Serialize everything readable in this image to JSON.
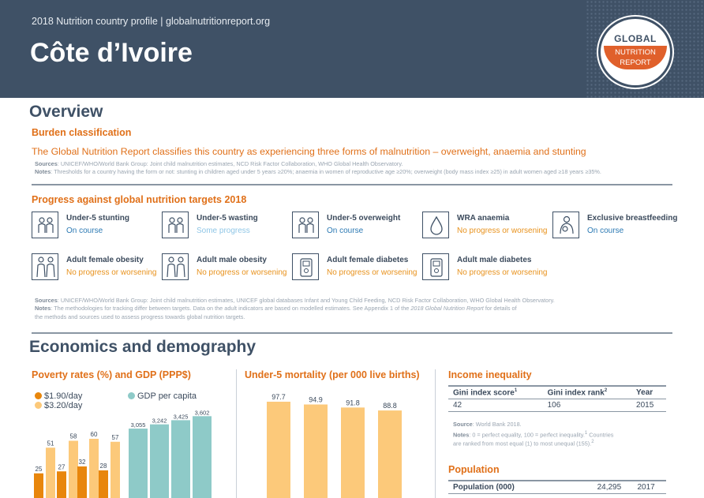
{
  "header": {
    "topline": "2018 Nutrition country profile  |  globalnutritionreport.org",
    "country": "Côte d’Ivoire",
    "logo_top": "GLOBAL",
    "logo_mid": "NUTRITION",
    "logo_bottom": "REPORT"
  },
  "colors": {
    "header_bg": "#3f5166",
    "accent_orange": "#e07019",
    "on_course": "#2b79b3",
    "some_progress": "#8fc6e6",
    "no_progress": "#e8921d",
    "poverty_190": "#e8860c",
    "poverty_320": "#fcc97a",
    "gdp": "#8ecac8"
  },
  "overview": {
    "title": "Overview",
    "burden_title": "Burden classification",
    "burden_text": "The Global Nutrition Report classifies this country as experiencing three forms of malnutrition – overweight, anaemia and stunting",
    "sources_label": "Sources",
    "sources_text": ": UNICEF/WHO/World Bank Group: Joint child malnutrition estimates, NCD Risk Factor Collaboration, WHO Global Health Observatory.",
    "notes_label": "Notes",
    "notes_text": ": Thresholds for a country having the form or not: stunting in children aged under 5 years ≥20%; anaemia in women of reproductive age ≥20%; overweight (body mass index ≥25) in adult women aged ≥18 years ≥35%."
  },
  "progress": {
    "title": "Progress against global nutrition targets 2018",
    "targets": [
      {
        "name": "Under-5 stunting",
        "status": "On course",
        "cls": "st-on",
        "icon": "children-icon"
      },
      {
        "name": "Under-5 wasting",
        "status": "Some progress",
        "cls": "st-some",
        "icon": "children-icon"
      },
      {
        "name": "Under-5 overweight",
        "status": "On course",
        "cls": "st-on",
        "icon": "children-icon"
      },
      {
        "name": "WRA anaemia",
        "status": "No progress or worsening",
        "cls": "st-no",
        "icon": "blood-drop-icon"
      },
      {
        "name": "Exclusive breastfeeding",
        "status": "On course",
        "cls": "st-on",
        "icon": "breastfeeding-icon"
      },
      {
        "name": "Adult female obesity",
        "status": "No progress or worsening",
        "cls": "st-no",
        "icon": "adults-icon"
      },
      {
        "name": "Adult male obesity",
        "status": "No progress or worsening",
        "cls": "st-no",
        "icon": "adults-icon"
      },
      {
        "name": "Adult female diabetes",
        "status": "No progress or worsening",
        "cls": "st-no",
        "icon": "glucose-meter-icon"
      },
      {
        "name": "Adult male diabetes",
        "status": "No progress or worsening",
        "cls": "st-no",
        "icon": "glucose-meter-icon"
      }
    ],
    "sources_label": "Sources",
    "sources_text": ": UNICEF/WHO/World Bank Group: Joint child malnutrition estimates, UNICEF global databases Infant and Young Child Feeding, NCD Risk Factor Collaboration, WHO Global Health Observatory.",
    "notes_label": "Notes",
    "notes_text": ": The methodologies for tracking differ between targets. Data on the adult indicators are based on modelled estimates. See Appendix 1 of the ",
    "notes_italic": "2018 Global Nutrition Report",
    "notes_text2": " for details of",
    "notes_line2": "the methods and sources used to assess progress towards global nutrition targets."
  },
  "economics": {
    "title": "Economics and demography",
    "poverty_title": "Poverty rates (%) and GDP (PPP$)",
    "mortality_title": "Under-5 mortality (per 000 live births)",
    "income_title": "Income inequality",
    "gini_headers": [
      "Gini index score",
      "Gini index rank",
      "Year"
    ],
    "gini_sup": [
      "1",
      "2",
      ""
    ],
    "gini_values": [
      "42",
      "106",
      "2015"
    ],
    "income_source_label": "Source",
    "income_source_text": ": World Bank 2018.",
    "income_notes_label": "Notes",
    "income_notes_text": ": 0 = perfect equality, 100 = perfect inequality.",
    "income_notes_sup1": "1",
    "income_notes_text2": " Countries",
    "income_notes_line2": "are ranked from most equal (1) to most unequal (155).",
    "income_notes_sup2": "2",
    "population_title": "Population",
    "population_label": "Population (000)",
    "population_value": "24,295",
    "population_year": "2017"
  },
  "chart_data": [
    {
      "type": "bar",
      "title": "Poverty rates (%) and GDP (PPP$)",
      "series": [
        {
          "name": "$1.90/day",
          "values": [
            25,
            27,
            32,
            28
          ]
        },
        {
          "name": "$3.20/day",
          "values": [
            51,
            58,
            60,
            57
          ]
        }
      ],
      "gdp": {
        "name": "GDP per capita",
        "values": [
          3055,
          3242,
          3425,
          3602
        ]
      }
    },
    {
      "type": "bar",
      "title": "Under-5 mortality (per 000 live births)",
      "values": [
        97.7,
        94.9,
        91.8,
        88.8
      ]
    }
  ]
}
